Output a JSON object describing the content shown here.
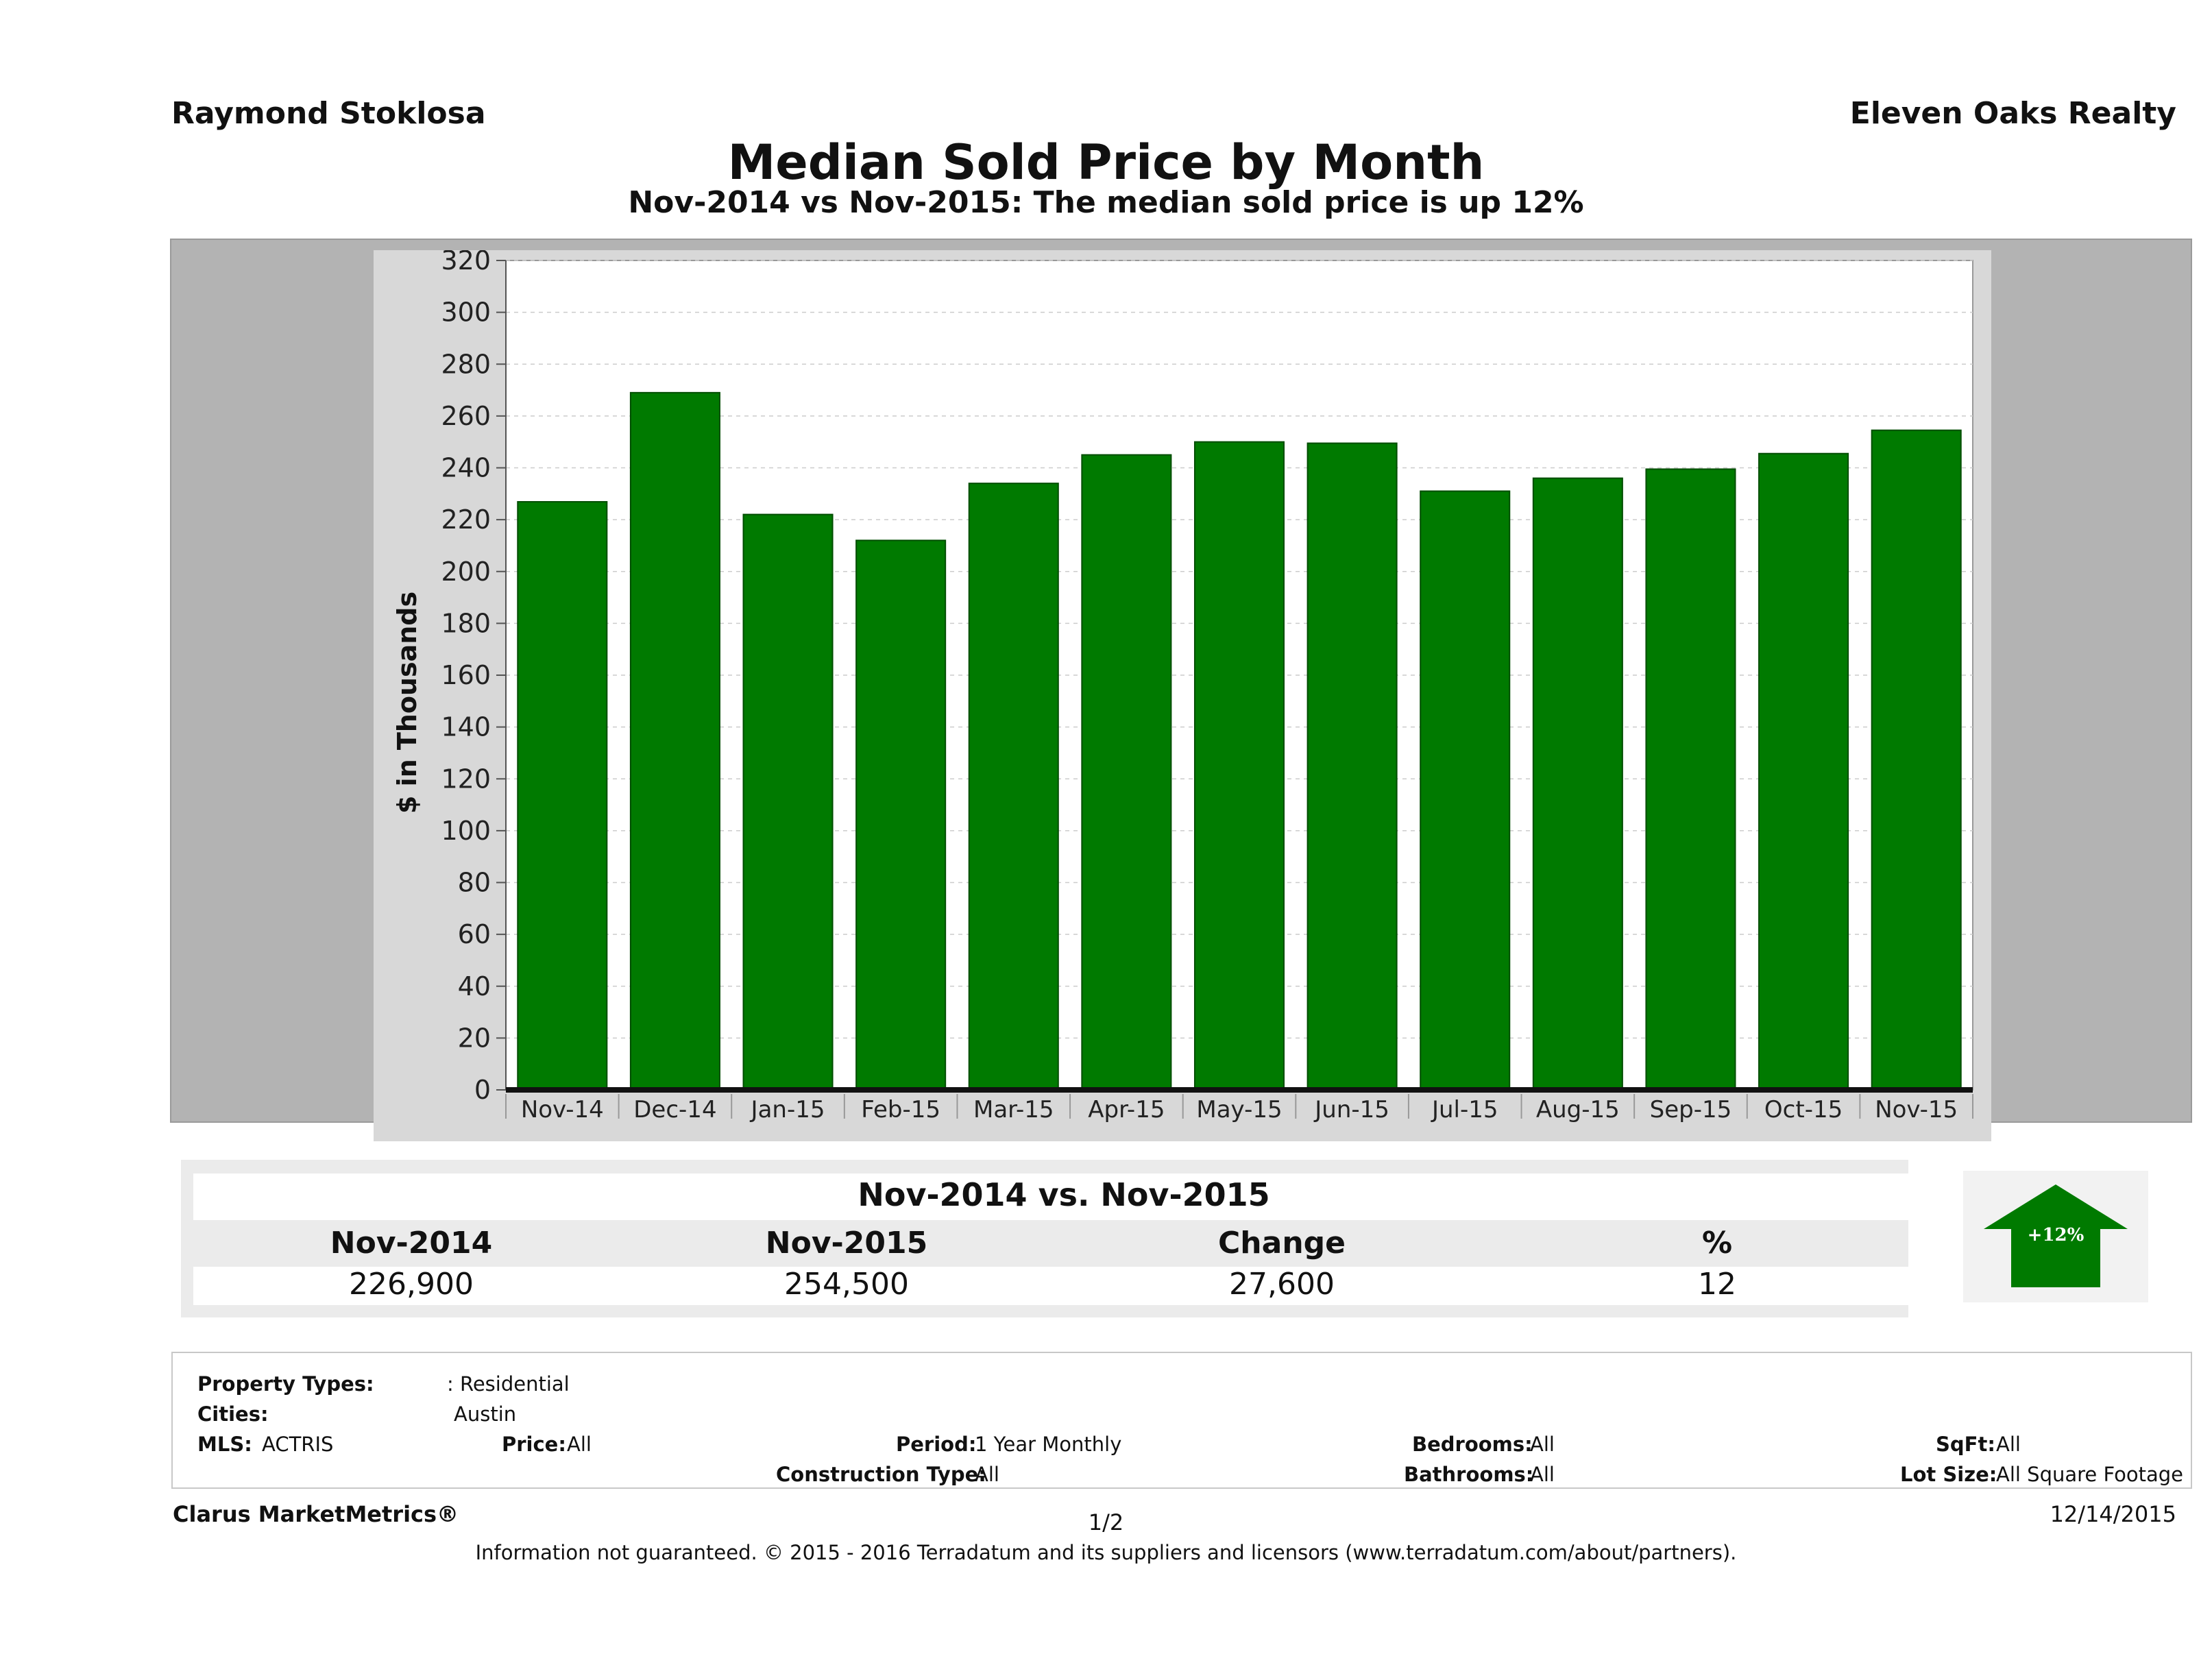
{
  "header": {
    "agent_name": "Raymond Stoklosa",
    "brokerage": "Eleven Oaks Realty"
  },
  "chart_data": {
    "type": "bar",
    "title": "Median Sold Price by Month",
    "subtitle": "Nov-2014 vs Nov-2015: The median sold price is up 12%",
    "ylabel": "$ in Thousands",
    "xlabel": "",
    "ylim": [
      0,
      320
    ],
    "yticks": [
      0,
      20,
      40,
      60,
      80,
      100,
      120,
      140,
      160,
      180,
      200,
      220,
      240,
      260,
      280,
      300,
      320
    ],
    "categories": [
      "Nov-14",
      "Dec-14",
      "Jan-15",
      "Feb-15",
      "Mar-15",
      "Apr-15",
      "May-15",
      "Jun-15",
      "Jul-15",
      "Aug-15",
      "Sep-15",
      "Oct-15",
      "Nov-15"
    ],
    "values": [
      226.9,
      269,
      222,
      212,
      234,
      245,
      250,
      249.5,
      231,
      236,
      239.5,
      245.5,
      254.5
    ],
    "bar_color": "#007a00",
    "grid": true
  },
  "summary": {
    "heading": "Nov-2014 vs. Nov-2015",
    "columns": [
      "Nov-2014",
      "Nov-2015",
      "Change",
      "%"
    ],
    "values": [
      "226,900",
      "254,500",
      "27,600",
      "12"
    ],
    "badge": "+12%",
    "badge_color": "#007a00"
  },
  "filters": {
    "property_types_label": "Property Types:",
    "property_types_value": ": Residential",
    "cities_label": "Cities:",
    "cities_value": "Austin",
    "mls_label": "MLS:",
    "mls_value": "ACTRIS",
    "price_label": "Price:",
    "price_value": "All",
    "period_label": "Period:",
    "period_value": "1 Year Monthly",
    "bedrooms_label": "Bedrooms:",
    "bedrooms_value": "All",
    "sqft_label": "SqFt:",
    "sqft_value": "All",
    "construction_label": "Construction Type:",
    "construction_value": "All",
    "bathrooms_label": "Bathrooms:",
    "bathrooms_value": "All",
    "lot_label": "Lot Size:",
    "lot_value": "All Square Footage"
  },
  "footer": {
    "product": "Clarus MarketMetrics®",
    "page": "1/2",
    "date": "12/14/2015",
    "disclaimer": "Information not guaranteed. © 2015 - 2016 Terradatum and its suppliers and licensors (www.terradatum.com/about/partners)."
  }
}
